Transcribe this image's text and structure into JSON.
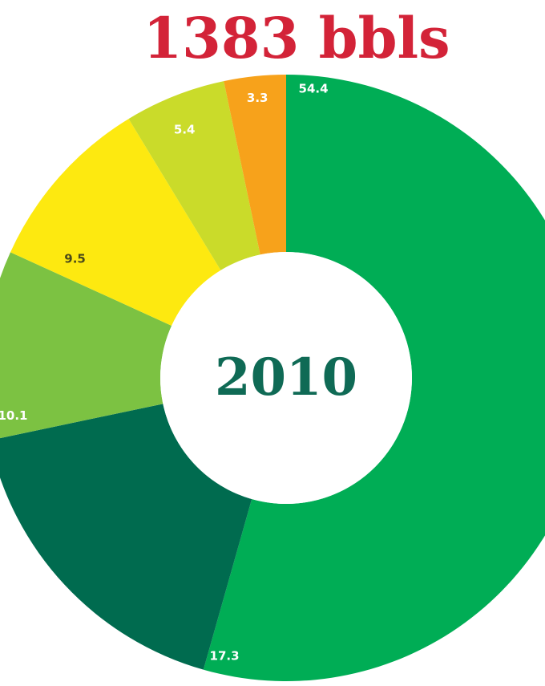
{
  "chart_data": {
    "type": "pie",
    "style": "donut",
    "title": "1383 bbls",
    "center_label": "2010",
    "direction": "clockwise-from-top",
    "slices": [
      {
        "label": "54.4",
        "value": 54.4,
        "color": "#00ad55",
        "label_color": "#ffffff"
      },
      {
        "label": "17.3",
        "value": 17.3,
        "color": "#006b4f",
        "label_color": "#ffffff"
      },
      {
        "label": "10.1",
        "value": 10.1,
        "color": "#7cc242",
        "label_color": "#ffffff"
      },
      {
        "label": "9.5",
        "value": 9.5,
        "color": "#fde910",
        "label_color": "#4a4a1a"
      },
      {
        "label": "5.4",
        "value": 5.4,
        "color": "#cadb2a",
        "label_color": "#ffffff"
      },
      {
        "label": "3.3",
        "value": 3.3,
        "color": "#f7a21b",
        "label_color": "#ffffff"
      }
    ]
  }
}
